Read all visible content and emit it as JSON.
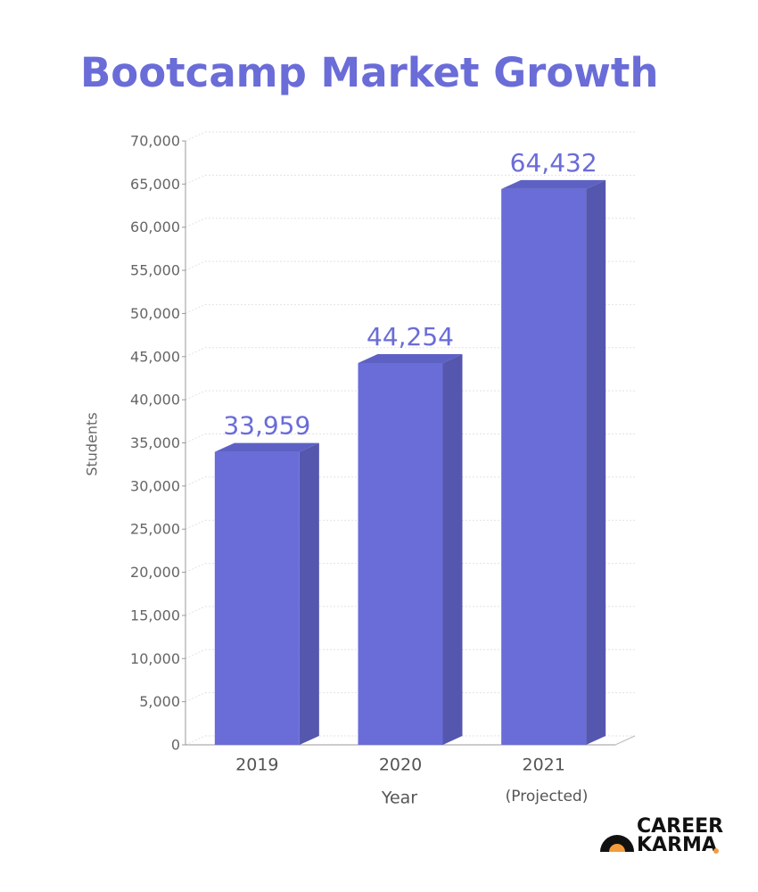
{
  "chart_data": {
    "type": "bar",
    "title": "Bootcamp Market Growth",
    "categories": [
      "2019",
      "2020",
      "2021"
    ],
    "values": [
      33959,
      44254,
      64432
    ],
    "value_labels": [
      "33,959",
      "44,254",
      "64,432"
    ],
    "annotation": "(Projected)",
    "color": "#6a6cd8",
    "x_label": "Year",
    "y_label": "Students",
    "ylim": [
      0,
      70000
    ],
    "yticks": [
      0,
      {
        "value": 5000,
        "label": "5,000"
      },
      {
        "value": 10000,
        "label": "10,000"
      },
      {
        "value": 15000,
        "label": "15,000"
      },
      {
        "value": 20000,
        "label": "20,000"
      },
      {
        "value": 25000,
        "label": "25,000"
      },
      {
        "value": 30000,
        "label": "30,000"
      },
      {
        "value": 35000,
        "label": "35,000"
      },
      {
        "value": 40000,
        "label": "40,000"
      },
      {
        "value": 45000,
        "label": "45,000"
      },
      {
        "value": 50000,
        "label": "50,000"
      },
      {
        "value": 55000,
        "label": "55,000"
      },
      {
        "value": 60000,
        "label": "60,000"
      },
      {
        "value": 65000,
        "label": "65,000"
      },
      {
        "value": 70000,
        "label": "70,000"
      }
    ],
    "grid": true
  },
  "logo": {
    "line1": "CAREER",
    "line2": "KARMA"
  }
}
